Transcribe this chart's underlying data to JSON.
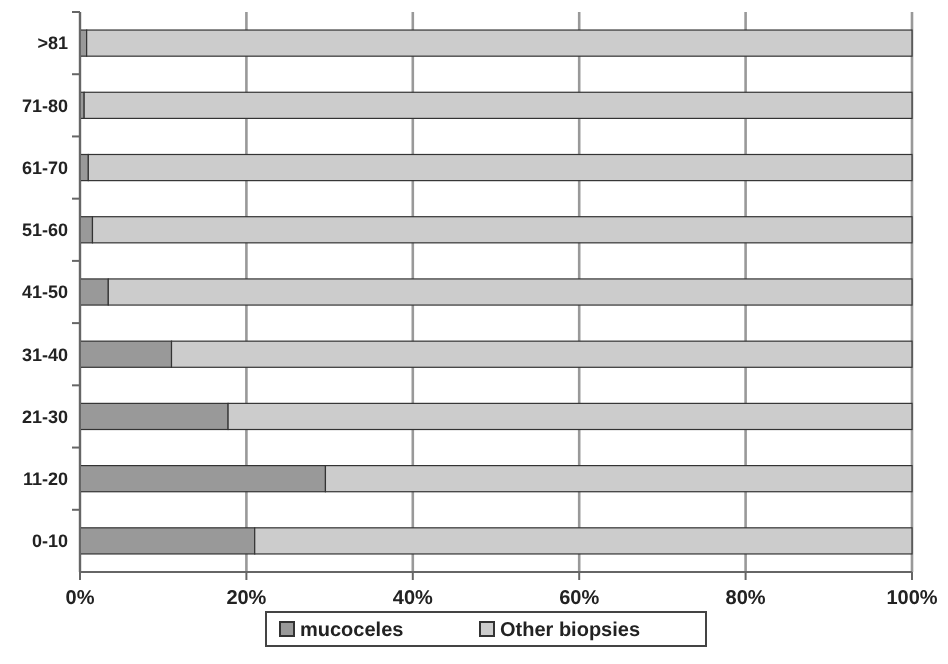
{
  "chart_data": {
    "type": "bar",
    "orientation": "horizontal",
    "stacked": true,
    "categories": [
      ">81",
      "71-80",
      "61-70",
      "51-60",
      "41-50",
      "31-40",
      "21-30",
      "11-20",
      "0-10"
    ],
    "series": [
      {
        "name": "mucoceles",
        "color": "#999999",
        "values": [
          0.8,
          0.5,
          1,
          1.5,
          3.4,
          11,
          17.8,
          29.5,
          21
        ]
      },
      {
        "name": "Other biopsies",
        "color": "#cccccc",
        "values": [
          99.2,
          99.5,
          99,
          98.5,
          96.6,
          89,
          82.2,
          70.5,
          79
        ]
      }
    ],
    "xlim": [
      0,
      100
    ],
    "xticks": [
      {
        "value": 0,
        "label": "0%"
      },
      {
        "value": 20,
        "label": "20%"
      },
      {
        "value": 40,
        "label": "40%"
      },
      {
        "value": 60,
        "label": "60%"
      },
      {
        "value": 80,
        "label": "80%"
      },
      {
        "value": 100,
        "label": "100%"
      }
    ],
    "grid": "x",
    "legend": "bottom"
  }
}
